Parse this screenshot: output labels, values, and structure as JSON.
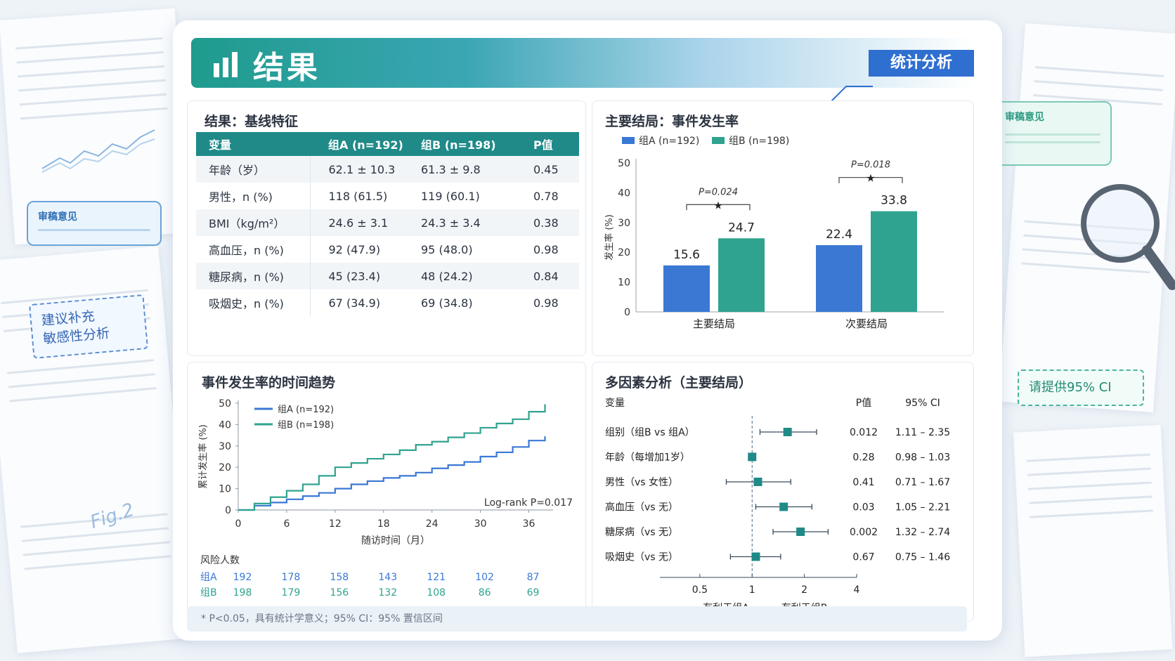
{
  "header": {
    "title": "结果",
    "tag": "统计分析"
  },
  "background": {
    "note_left": "审稿意见",
    "note_right": "审稿意见",
    "suggest": [
      "建议补充",
      "敏感性分析"
    ],
    "request": "请提供95% CI",
    "fig_label": "Fig.2"
  },
  "baseline": {
    "title": "结果：基线特征",
    "headers": [
      "变量",
      "组A (n=192)",
      "组B (n=198)",
      "P值"
    ],
    "rows": [
      [
        "年龄（岁）",
        "62.1 ± 10.3",
        "61.3 ± 9.8",
        "0.45"
      ],
      [
        "男性，n (%)",
        "118 (61.5)",
        "119 (60.1)",
        "0.78"
      ],
      [
        "BMI（kg/m²）",
        "24.6 ± 3.1",
        "24.3 ± 3.4",
        "0.38"
      ],
      [
        "高血压，n (%)",
        "92 (47.9)",
        "95 (48.0)",
        "0.98"
      ],
      [
        "糖尿病，n (%)",
        "45 (23.4)",
        "48 (24.2)",
        "0.84"
      ],
      [
        "吸烟史，n (%)",
        "67 (34.9)",
        "69 (34.8)",
        "0.98"
      ]
    ]
  },
  "footer": "* P<0.05，具有统计学意义；95% CI：95% 置信区间",
  "colors": {
    "groupA": "#3a78d4",
    "groupB": "#2fa38f",
    "header": "#1f8a88"
  },
  "chart_data": [
    {
      "type": "bar",
      "title": "主要结局：事件发生率",
      "ylabel": "发生率 (%)",
      "ylim": [
        0,
        50
      ],
      "yticks": [
        0,
        10,
        20,
        30,
        40,
        50
      ],
      "categories": [
        "主要结局",
        "次要结局"
      ],
      "series": [
        {
          "name": "组A (n=192)",
          "values": [
            15.6,
            22.4
          ]
        },
        {
          "name": "组B (n=198)",
          "values": [
            24.7,
            33.8
          ]
        }
      ],
      "annotations": [
        "P=0.024",
        "P=0.018"
      ],
      "legend": "top-left"
    },
    {
      "type": "line",
      "title": "事件发生率的时间趋势",
      "xlabel": "随访时间（月）",
      "ylabel": "累计发生率 (%)",
      "xlim": [
        0,
        39
      ],
      "ylim": [
        0,
        50
      ],
      "xticks": [
        0,
        6,
        12,
        18,
        24,
        30,
        36
      ],
      "yticks": [
        0,
        10,
        20,
        30,
        40,
        50
      ],
      "series": [
        {
          "name": "组A (n=192)",
          "x": [
            0,
            2,
            4,
            6,
            8,
            10,
            12,
            14,
            16,
            18,
            20,
            22,
            24,
            26,
            28,
            30,
            32,
            34,
            36,
            38
          ],
          "y": [
            0,
            2,
            3.5,
            5,
            6.5,
            8,
            10,
            12,
            13.5,
            15,
            16,
            17.5,
            19.5,
            21,
            22.5,
            25,
            27,
            29.5,
            32.5,
            34.5
          ]
        },
        {
          "name": "组B (n=198)",
          "x": [
            0,
            2,
            4,
            6,
            8,
            10,
            12,
            14,
            16,
            18,
            20,
            22,
            24,
            26,
            28,
            30,
            32,
            34,
            36,
            38
          ],
          "y": [
            0,
            3,
            6,
            9,
            12,
            16,
            20,
            22,
            24,
            26,
            28,
            30.5,
            32,
            34,
            36,
            38.5,
            40.5,
            42.5,
            46,
            49.5
          ]
        }
      ],
      "annotation": "Log-rank P=0.017",
      "risk_table": {
        "title": "风险人数",
        "times": [
          0,
          6,
          12,
          18,
          24,
          30,
          36
        ],
        "rows": [
          {
            "name": "组A",
            "values": [
              192,
              178,
              158,
              143,
              121,
              102,
              87
            ]
          },
          {
            "name": "组B",
            "values": [
              198,
              179,
              156,
              132,
              108,
              86,
              69
            ]
          }
        ]
      },
      "legend": "top-left"
    },
    {
      "type": "forest",
      "title": "多因素分析（主要结局）",
      "columns": [
        "变量",
        "P值",
        "95% CI"
      ],
      "xscale": "log",
      "xticks": [
        0.5,
        1,
        2,
        4
      ],
      "xlabels": [
        "有利于组A",
        "有利于组B"
      ],
      "rows": [
        {
          "label": "组别（组B vs 组A）",
          "estimate": 1.6,
          "low": 1.11,
          "high": 2.35,
          "p": "0.012",
          "ci": "1.11 – 2.35"
        },
        {
          "label": "年龄（每增加1岁）",
          "estimate": 1.0,
          "low": 0.98,
          "high": 1.03,
          "p": "0.28",
          "ci": "0.98 – 1.03"
        },
        {
          "label": "男性（vs 女性）",
          "estimate": 1.08,
          "low": 0.71,
          "high": 1.67,
          "p": "0.41",
          "ci": "0.71 – 1.67"
        },
        {
          "label": "高血压（vs 无）",
          "estimate": 1.52,
          "low": 1.05,
          "high": 2.21,
          "p": "0.03",
          "ci": "1.05 – 2.21"
        },
        {
          "label": "糖尿病（vs 无）",
          "estimate": 1.9,
          "low": 1.32,
          "high": 2.74,
          "p": "0.002",
          "ci": "1.32 – 2.74"
        },
        {
          "label": "吸烟史（vs 无）",
          "estimate": 1.05,
          "low": 0.75,
          "high": 1.46,
          "p": "0.67",
          "ci": "0.75 – 1.46"
        }
      ]
    }
  ]
}
